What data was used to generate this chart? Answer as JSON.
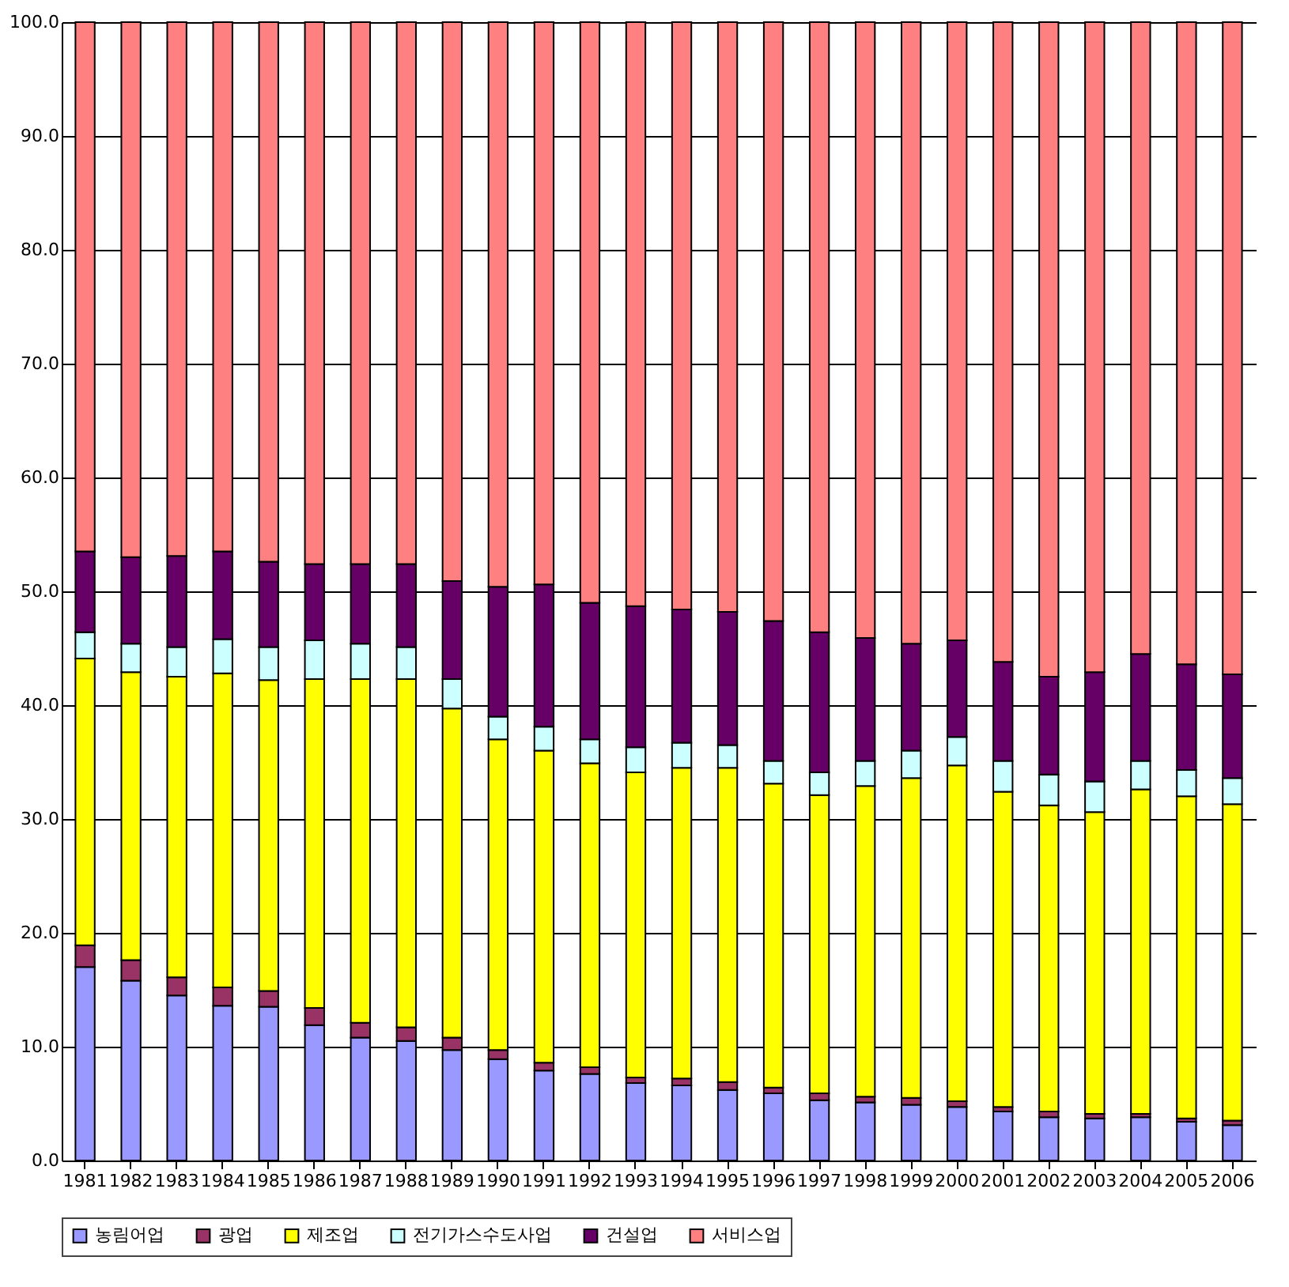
{
  "chart_data": {
    "type": "bar",
    "stacked": true,
    "categories": [
      "1981",
      "1982",
      "1983",
      "1984",
      "1985",
      "1986",
      "1987",
      "1988",
      "1989",
      "1990",
      "1991",
      "1992",
      "1993",
      "1994",
      "1995",
      "1996",
      "1997",
      "1998",
      "1999",
      "2000",
      "2001",
      "2002",
      "2003",
      "2004",
      "2005",
      "2006"
    ],
    "series": [
      {
        "name": "농림어업",
        "color": "#9999ff",
        "values": [
          17.0,
          15.8,
          14.5,
          13.6,
          13.5,
          11.9,
          10.8,
          10.5,
          9.7,
          8.9,
          7.9,
          7.6,
          6.8,
          6.6,
          6.2,
          5.9,
          5.3,
          5.1,
          4.9,
          4.7,
          4.3,
          3.8,
          3.7,
          3.8,
          3.4,
          3.1
        ]
      },
      {
        "name": "광업",
        "color": "#993366",
        "values": [
          1.9,
          1.8,
          1.6,
          1.6,
          1.4,
          1.5,
          1.3,
          1.2,
          1.1,
          0.8,
          0.7,
          0.6,
          0.5,
          0.6,
          0.7,
          0.5,
          0.6,
          0.5,
          0.6,
          0.5,
          0.4,
          0.5,
          0.4,
          0.3,
          0.3,
          0.4
        ]
      },
      {
        "name": "제조업",
        "color": "#ffff00",
        "values": [
          25.2,
          25.3,
          26.4,
          27.6,
          27.3,
          28.9,
          30.2,
          30.6,
          28.9,
          27.3,
          27.4,
          26.7,
          26.8,
          27.3,
          27.6,
          26.7,
          26.2,
          27.3,
          28.1,
          29.5,
          27.7,
          26.9,
          26.5,
          28.5,
          28.3,
          27.8
        ]
      },
      {
        "name": "전기가스수도사업",
        "color": "#ccffff",
        "values": [
          2.3,
          2.5,
          2.6,
          3.0,
          2.9,
          3.4,
          3.1,
          2.8,
          2.6,
          2.0,
          2.1,
          2.1,
          2.2,
          2.2,
          2.0,
          2.0,
          2.0,
          2.2,
          2.4,
          2.5,
          2.7,
          2.7,
          2.7,
          2.5,
          2.3,
          2.3
        ]
      },
      {
        "name": "건설업",
        "color": "#660066",
        "values": [
          7.1,
          7.6,
          8.0,
          7.7,
          7.5,
          6.7,
          7.0,
          7.3,
          8.6,
          11.4,
          12.5,
          12.0,
          12.4,
          11.7,
          11.7,
          12.3,
          12.3,
          10.8,
          9.4,
          8.5,
          8.7,
          8.6,
          9.6,
          9.4,
          9.3,
          9.1
        ]
      },
      {
        "name": "서비스업",
        "color": "#ff8080",
        "values": [
          46.5,
          47.0,
          46.9,
          46.5,
          47.4,
          47.6,
          47.6,
          47.6,
          49.1,
          49.6,
          49.4,
          51.0,
          51.3,
          51.6,
          51.8,
          52.6,
          53.6,
          54.1,
          54.6,
          54.3,
          56.2,
          57.5,
          57.1,
          55.5,
          56.4,
          57.3
        ]
      }
    ],
    "ylim": [
      0,
      100
    ],
    "yticks": [
      {
        "value": 0,
        "label": "0.0"
      },
      {
        "value": 10,
        "label": "10.0"
      },
      {
        "value": 20,
        "label": "20.0"
      },
      {
        "value": 30,
        "label": "30.0"
      },
      {
        "value": 40,
        "label": "40.0"
      },
      {
        "value": 50,
        "label": "50.0"
      },
      {
        "value": 60,
        "label": "60.0"
      },
      {
        "value": 70,
        "label": "70.0"
      },
      {
        "value": 80,
        "label": "80.0"
      },
      {
        "value": 90,
        "label": "90.0"
      },
      {
        "value": 100,
        "label": "100.0"
      }
    ],
    "grid": "y",
    "legend": "bottom"
  }
}
